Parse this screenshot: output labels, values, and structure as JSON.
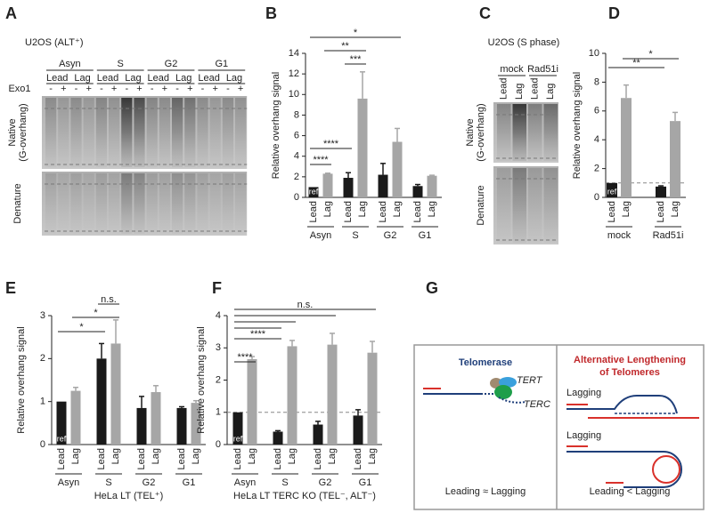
{
  "gels": [
    {
      "panel": "A",
      "title": "U2OS (ALT⁺)",
      "groups": [
        "Asyn",
        "S",
        "G2",
        "G1"
      ],
      "strands": [
        "Lead",
        "Lag"
      ],
      "treatment": "Exo1",
      "treatment_states": [
        "-",
        "+"
      ],
      "native_label": [
        "Native",
        "(G-overhang)"
      ],
      "denature_label": "Denature"
    },
    {
      "panel": "C",
      "title": "U2OS (S phase)",
      "groups": [
        "mock",
        "Rad51i"
      ],
      "strands": [
        "Lead",
        "Lag"
      ],
      "native_label": [
        "Native",
        "(G-overhang)"
      ],
      "denature_label": "Denature"
    }
  ],
  "chart_data": [
    {
      "panel": "B",
      "type": "bar",
      "ylabel": "Relative overhang signal",
      "categories": [
        "Lead",
        "Lag",
        "Lead",
        "Lag",
        "Lead",
        "Lag",
        "Lead",
        "Lag"
      ],
      "groups": [
        "Asyn",
        "S",
        "G2",
        "G1"
      ],
      "values": [
        1,
        2.3,
        1.9,
        9.6,
        2.2,
        5.4,
        1.1,
        2.1
      ],
      "errors": [
        null,
        0.05,
        0.5,
        2.6,
        1.1,
        1.3,
        0.15,
        0.05
      ],
      "bar_text": [
        "ref",
        null,
        null,
        null,
        null,
        null,
        null,
        null
      ],
      "colors": [
        "#1a1a1a",
        "#a6a6a6"
      ],
      "ylim": [
        0,
        14
      ],
      "yticks": [
        0,
        2,
        4,
        6,
        8,
        10,
        12,
        14
      ],
      "significance": [
        "****",
        "****",
        "***",
        "**",
        "*"
      ]
    },
    {
      "panel": "D",
      "type": "bar",
      "ylabel": "Relative overhang signal",
      "categories": [
        "Lead",
        "Lag",
        "Lead",
        "Lag"
      ],
      "groups": [
        "mock",
        "Rad51i"
      ],
      "values": [
        1,
        6.9,
        0.75,
        5.3
      ],
      "errors": [
        null,
        0.9,
        0.05,
        0.6
      ],
      "bar_text": [
        "ref",
        null,
        null,
        null
      ],
      "colors": [
        "#1a1a1a",
        "#a6a6a6"
      ],
      "reference_line": 1,
      "ylim": [
        0,
        10
      ],
      "yticks": [
        0,
        2,
        4,
        6,
        8,
        10
      ],
      "significance": [
        "**",
        "*"
      ]
    },
    {
      "panel": "E",
      "type": "bar",
      "ylabel": "Relative overhang signal",
      "xlabel": "HeLa LT (TEL⁺)",
      "categories": [
        "Lead",
        "Lag",
        "Lead",
        "Lag",
        "Lead",
        "Lag",
        "Lead",
        "Lag"
      ],
      "groups": [
        "Asyn",
        "S",
        "G2",
        "G1"
      ],
      "values": [
        1,
        1.25,
        2.0,
        2.35,
        0.85,
        1.22,
        0.85,
        0.97
      ],
      "errors": [
        null,
        0.08,
        0.35,
        0.55,
        0.27,
        0.15,
        0.03,
        0.05
      ],
      "bar_text": [
        "ref",
        null,
        null,
        null,
        null,
        null,
        null,
        null
      ],
      "colors": [
        "#1a1a1a",
        "#a6a6a6"
      ],
      "ylim": [
        0,
        3
      ],
      "yticks": [
        0,
        1,
        2,
        3
      ],
      "significance": [
        "*",
        "*",
        "n.s."
      ]
    },
    {
      "panel": "F",
      "type": "bar",
      "ylabel": "Relative overhang signal",
      "xlabel": "HeLa LT TERC KO (TEL⁻, ALT⁻)",
      "categories": [
        "Lead",
        "Lag",
        "Lead",
        "Lag",
        "Lead",
        "Lag",
        "Lead",
        "Lag"
      ],
      "groups": [
        "Asyn",
        "S",
        "G2",
        "G1"
      ],
      "values": [
        1,
        2.65,
        0.4,
        3.05,
        0.62,
        3.1,
        0.9,
        2.85
      ],
      "errors": [
        null,
        0.08,
        0.03,
        0.18,
        0.1,
        0.35,
        0.18,
        0.35
      ],
      "bar_text": [
        "ref",
        null,
        null,
        null,
        null,
        null,
        null,
        null
      ],
      "colors": [
        "#1a1a1a",
        "#a6a6a6"
      ],
      "reference_line": 1,
      "ylim": [
        0,
        4
      ],
      "yticks": [
        0,
        1,
        2,
        3,
        4
      ],
      "significance": [
        "****",
        "****",
        "n.s."
      ]
    }
  ],
  "diagram": {
    "panel": "G",
    "left": {
      "title": "Telomerase",
      "labels": [
        "TERT",
        "TERC"
      ],
      "caption": "Leading ≈ Lagging"
    },
    "right": {
      "title": [
        "Alternative Lengthening",
        "of Telomeres"
      ],
      "labels": [
        "Lagging",
        "Lagging"
      ],
      "caption": "Leading < Lagging"
    }
  }
}
